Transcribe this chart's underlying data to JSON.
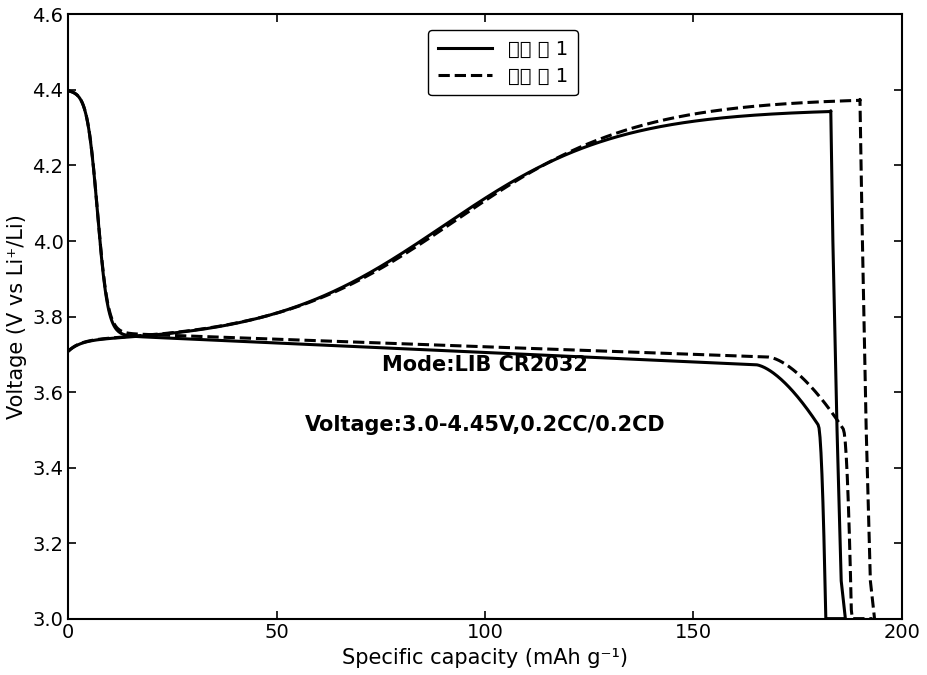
{
  "xlabel": "Specific capacity (mAh g⁻¹)",
  "ylabel": "Voltage (V vs Li⁺/Li)",
  "xlim": [
    0,
    200
  ],
  "ylim": [
    3.0,
    4.6
  ],
  "xticks": [
    0,
    50,
    100,
    150,
    200
  ],
  "yticks": [
    3.0,
    3.2,
    3.4,
    3.6,
    3.8,
    4.0,
    4.2,
    4.4,
    4.6
  ],
  "annotation_line1": "Mode:LIB CR2032",
  "annotation_line2": "Voltage:3.0-4.45V,0.2CC/0.2CD",
  "legend_solid": "实施 例 1",
  "legend_dashed": "比较 例 1",
  "line_color": "#000000",
  "background_color": "#ffffff",
  "figsize": [
    9.27,
    6.75
  ],
  "dpi": 100
}
